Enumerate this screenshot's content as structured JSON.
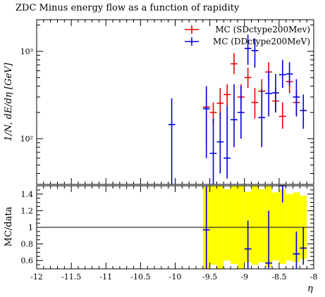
{
  "chart_data": [
    {
      "panel": "main",
      "type": "scatter",
      "title": "ZDC Minus energy flow as a function of rapidity",
      "ylabel": "1/N, dE/dη [GeV]",
      "xlabel": "",
      "xlim": [
        -12,
        -8
      ],
      "ylim": [
        30,
        2300
      ],
      "yscale": "log",
      "yticks": [
        {
          "value": 100,
          "label": "10²"
        },
        {
          "value": 1000,
          "label": "10³"
        }
      ],
      "legend_position": "top-right",
      "series": [
        {
          "name": "MC (SDctype200Mev)",
          "color": "#ee0000",
          "points": [
            {
              "x": -9.55,
              "y": 230,
              "ylo": 90,
              "yhi": 330
            },
            {
              "x": -9.45,
              "y": 200,
              "ylo": 150,
              "yhi": 260
            },
            {
              "x": -9.35,
              "y": 255,
              "ylo": 170,
              "yhi": 380
            },
            {
              "x": -9.25,
              "y": 320,
              "ylo": 240,
              "yhi": 420
            },
            {
              "x": -9.15,
              "y": 720,
              "ylo": 550,
              "yhi": 950
            },
            {
              "x": -9.05,
              "y": 300,
              "ylo": 220,
              "yhi": 420
            },
            {
              "x": -8.95,
              "y": 500,
              "ylo": 380,
              "yhi": 650
            },
            {
              "x": -8.85,
              "y": 260,
              "ylo": 170,
              "yhi": 380
            },
            {
              "x": -8.75,
              "y": 350,
              "ylo": 240,
              "yhi": 480
            },
            {
              "x": -8.65,
              "y": 580,
              "ylo": 450,
              "yhi": 750
            },
            {
              "x": -8.55,
              "y": 270,
              "ylo": 200,
              "yhi": 380
            },
            {
              "x": -8.45,
              "y": 180,
              "ylo": 130,
              "yhi": 260
            },
            {
              "x": -8.35,
              "y": 450,
              "ylo": 330,
              "yhi": 600
            },
            {
              "x": -8.25,
              "y": 260,
              "ylo": 180,
              "yhi": 360
            }
          ]
        },
        {
          "name": "MC (DDctype200MeV)",
          "color": "#0000dd",
          "points": [
            {
              "x": -10.05,
              "y": 145,
              "ylo": 30,
              "yhi": 290
            },
            {
              "x": -9.55,
              "y": 220,
              "ylo": 60,
              "yhi": 400
            },
            {
              "x": -9.45,
              "y": 68,
              "ylo": 30,
              "yhi": 170
            },
            {
              "x": -9.35,
              "y": 92,
              "ylo": 40,
              "yhi": 200
            },
            {
              "x": -9.25,
              "y": 60,
              "ylo": 35,
              "yhi": 240
            },
            {
              "x": -9.15,
              "y": 165,
              "ylo": 80,
              "yhi": 420
            },
            {
              "x": -9.05,
              "y": 200,
              "ylo": 100,
              "yhi": 400
            },
            {
              "x": -8.95,
              "y": 1080,
              "ylo": 700,
              "yhi": 1550
            },
            {
              "x": -8.85,
              "y": 1020,
              "ylo": 650,
              "yhi": 1400
            },
            {
              "x": -8.75,
              "y": 175,
              "ylo": 80,
              "yhi": 370
            },
            {
              "x": -8.65,
              "y": 330,
              "ylo": 180,
              "yhi": 600
            },
            {
              "x": -8.55,
              "y": 335,
              "ylo": 200,
              "yhi": 550
            },
            {
              "x": -8.45,
              "y": 540,
              "ylo": 380,
              "yhi": 800
            },
            {
              "x": -8.35,
              "y": 550,
              "ylo": 400,
              "yhi": 750
            },
            {
              "x": -8.25,
              "y": 300,
              "ylo": 180,
              "yhi": 480
            },
            {
              "x": -8.15,
              "y": 210,
              "ylo": 130,
              "yhi": 320
            }
          ]
        }
      ]
    },
    {
      "panel": "ratio",
      "type": "scatter",
      "ylabel": "MC/data",
      "xlabel": "η",
      "xlim": [
        -12,
        -8
      ],
      "ylim": [
        0.5,
        1.5
      ],
      "xticks": [
        {
          "value": -12,
          "label": "-12"
        },
        {
          "value": -11.5,
          "label": "-11.5"
        },
        {
          "value": -11,
          "label": "-11"
        },
        {
          "value": -10.5,
          "label": "-10.5"
        },
        {
          "value": -10,
          "label": "-10"
        },
        {
          "value": -9.5,
          "label": "-9.5"
        },
        {
          "value": -9,
          "label": "-9"
        },
        {
          "value": -8.5,
          "label": "-8.5"
        },
        {
          "value": -8,
          "label": "-8"
        }
      ],
      "yticks": [
        {
          "value": 0.6,
          "label": "0.6"
        },
        {
          "value": 0.8,
          "label": "0.8"
        },
        {
          "value": 1.0,
          "label": "1"
        },
        {
          "value": 1.2,
          "label": "1.2"
        },
        {
          "value": 1.4,
          "label": "1.4"
        }
      ],
      "reference_line": 1.0,
      "band": {
        "color": "#ffff00",
        "bins": [
          {
            "x0": -9.6,
            "x1": -9.5,
            "lo": 0.5,
            "hi": 1.5
          },
          {
            "x0": -9.5,
            "x1": -9.4,
            "lo": 0.55,
            "hi": 1.5
          },
          {
            "x0": -9.4,
            "x1": -9.3,
            "lo": 0.5,
            "hi": 1.5
          },
          {
            "x0": -9.3,
            "x1": -9.2,
            "lo": 0.6,
            "hi": 1.46
          },
          {
            "x0": -9.2,
            "x1": -9.1,
            "lo": 0.56,
            "hi": 1.5
          },
          {
            "x0": -9.1,
            "x1": -9.0,
            "lo": 0.5,
            "hi": 1.5
          },
          {
            "x0": -9.0,
            "x1": -8.9,
            "lo": 0.58,
            "hi": 1.43
          },
          {
            "x0": -8.9,
            "x1": -8.8,
            "lo": 0.55,
            "hi": 1.5
          },
          {
            "x0": -8.8,
            "x1": -8.7,
            "lo": 0.58,
            "hi": 1.46
          },
          {
            "x0": -8.7,
            "x1": -8.6,
            "lo": 0.52,
            "hi": 1.5
          },
          {
            "x0": -8.6,
            "x1": -8.5,
            "lo": 0.6,
            "hi": 1.42
          },
          {
            "x0": -8.5,
            "x1": -8.4,
            "lo": 0.56,
            "hi": 1.46
          },
          {
            "x0": -8.4,
            "x1": -8.3,
            "lo": 0.6,
            "hi": 1.4
          },
          {
            "x0": -8.3,
            "x1": -8.2,
            "lo": 0.58,
            "hi": 1.42
          },
          {
            "x0": -8.2,
            "x1": -8.1,
            "lo": 0.62,
            "hi": 1.38
          }
        ]
      },
      "series": [
        {
          "color": "#0000dd",
          "points": [
            {
              "x": -9.55,
              "y": 0.97,
              "ylo": 0.5,
              "yhi": 1.5
            },
            {
              "x": -8.95,
              "y": 0.74,
              "ylo": 0.5,
              "yhi": 1.08
            },
            {
              "x": -8.65,
              "y": 0.57,
              "ylo": 0.5,
              "yhi": 1.2
            },
            {
              "x": -8.45,
              "y": 1.5,
              "ylo": 1.3,
              "yhi": 1.5
            },
            {
              "x": -8.25,
              "y": 0.68,
              "ylo": 0.5,
              "yhi": 0.95
            },
            {
              "x": -8.15,
              "y": 0.75,
              "ylo": 0.55,
              "yhi": 1.0
            }
          ]
        }
      ]
    }
  ]
}
